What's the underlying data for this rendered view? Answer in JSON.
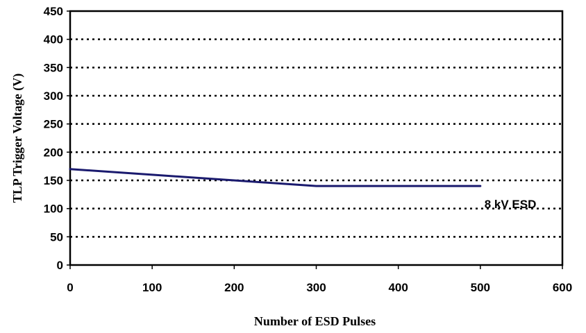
{
  "chart_data": {
    "type": "line",
    "title": "",
    "xlabel": "Number of ESD Pulses",
    "ylabel": "TLP Trigger Voltage (V)",
    "xlim": [
      0,
      600
    ],
    "ylim": [
      0,
      450
    ],
    "x_ticks": [
      "0",
      "100",
      "200",
      "300",
      "400",
      "500",
      "600"
    ],
    "y_ticks": [
      "0",
      "50",
      "100",
      "150",
      "200",
      "250",
      "300",
      "350",
      "400",
      "450"
    ],
    "grid": "horizontal dotted",
    "legend": "none",
    "series": [
      {
        "color": "#1a1a6e",
        "x": [
          0,
          100,
          200,
          300,
          400,
          500
        ],
        "y": [
          170,
          160,
          150,
          140,
          140,
          140
        ]
      }
    ],
    "annotations": [
      {
        "text": "8 kV ESD",
        "x": 505,
        "y": 108
      }
    ]
  }
}
